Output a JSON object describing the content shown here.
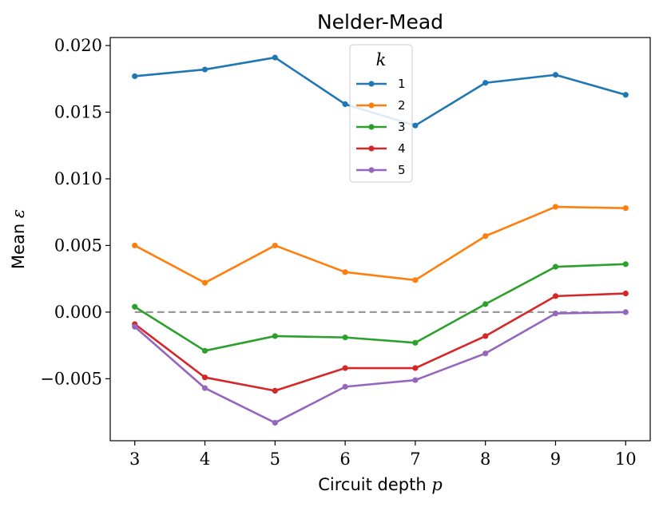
{
  "chart_data": {
    "type": "line",
    "title": "Nelder-Mead",
    "xlabel": "Circuit depth",
    "xlabel_var": "p",
    "ylabel": "Mean",
    "ylabel_var": "ε",
    "x": [
      3,
      4,
      5,
      6,
      7,
      8,
      9,
      10
    ],
    "xticks": [
      "3",
      "4",
      "5",
      "6",
      "7",
      "8",
      "9",
      "10"
    ],
    "yticks": [
      {
        "value": 0.02,
        "label": "0.020"
      },
      {
        "value": 0.015,
        "label": "0.015"
      },
      {
        "value": 0.01,
        "label": "0.010"
      },
      {
        "value": 0.005,
        "label": "0.005"
      },
      {
        "value": 0.0,
        "label": "0.000"
      },
      {
        "value": -0.005,
        "label": "−0.005"
      }
    ],
    "xlim": [
      2.65,
      10.35
    ],
    "ylim": [
      -0.00965,
      0.0206
    ],
    "grid": false,
    "legend": {
      "title": "k",
      "placement": "upper-center"
    },
    "reference_line": {
      "y": 0,
      "color": "#999999",
      "style": "dashed"
    },
    "series": [
      {
        "name": "1",
        "color": "#1f77b4",
        "values": [
          0.0177,
          0.0182,
          0.0191,
          0.0156,
          0.014,
          0.0172,
          0.0178,
          0.0163
        ]
      },
      {
        "name": "2",
        "color": "#ff7f0e",
        "values": [
          0.005,
          0.0022,
          0.005,
          0.003,
          0.0024,
          0.0057,
          0.0079,
          0.0078
        ]
      },
      {
        "name": "3",
        "color": "#2ca02c",
        "values": [
          0.0004,
          -0.0029,
          -0.0018,
          -0.0019,
          -0.0023,
          0.0006,
          0.0034,
          0.0036
        ]
      },
      {
        "name": "4",
        "color": "#d62728",
        "values": [
          -0.0009,
          -0.0049,
          -0.0059,
          -0.0042,
          -0.0042,
          -0.0018,
          0.0012,
          0.0014
        ]
      },
      {
        "name": "5",
        "color": "#9467bd",
        "values": [
          -0.0011,
          -0.0057,
          -0.0083,
          -0.0056,
          -0.0051,
          -0.0031,
          -0.0001,
          0.0
        ]
      }
    ]
  }
}
